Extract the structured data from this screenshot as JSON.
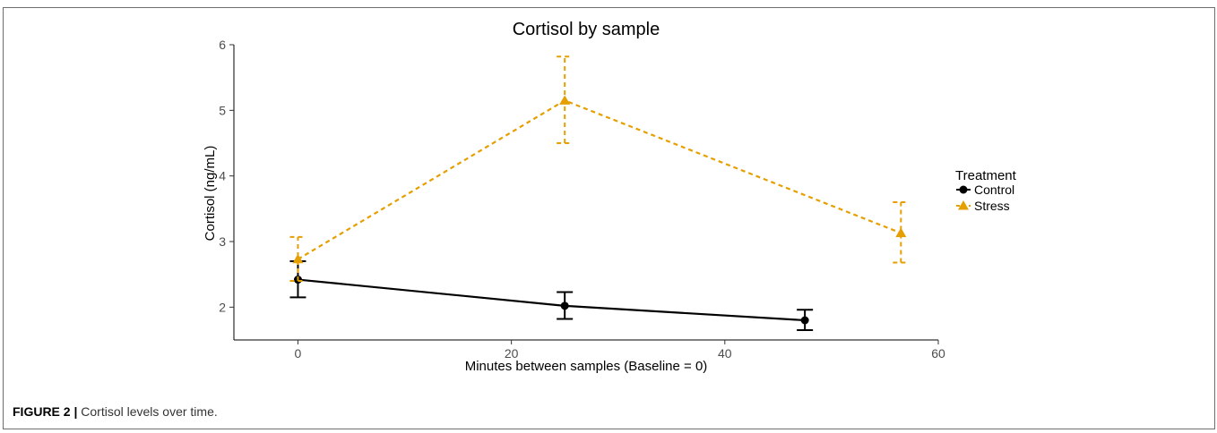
{
  "caption": {
    "label": "FIGURE 2 |",
    "text": " Cortisol levels over time."
  },
  "chart_data": {
    "type": "line",
    "title": "Cortisol by sample",
    "xlabel": "Minutes between samples (Baseline = 0)",
    "ylabel": "Cortisol (ng/mL)",
    "xlim": [
      -6,
      60
    ],
    "ylim": [
      1.5,
      6
    ],
    "xticks": [
      0,
      20,
      40,
      60
    ],
    "yticks": [
      2,
      3,
      4,
      5,
      6
    ],
    "grid": false,
    "legend": {
      "title": "Treatment",
      "placement": "right"
    },
    "series": [
      {
        "name": "Control",
        "color": "#000000",
        "marker": "circle",
        "line": "solid",
        "points": [
          {
            "x": 0,
            "y": 2.42,
            "lo": 2.15,
            "hi": 2.7
          },
          {
            "x": 25,
            "y": 2.02,
            "lo": 1.82,
            "hi": 2.23
          },
          {
            "x": 47.5,
            "y": 1.8,
            "lo": 1.65,
            "hi": 1.96
          }
        ]
      },
      {
        "name": "Stress",
        "color": "#E69F00",
        "marker": "triangle",
        "line": "dashed",
        "points": [
          {
            "x": 0,
            "y": 2.73,
            "lo": 2.4,
            "hi": 3.07
          },
          {
            "x": 25,
            "y": 5.15,
            "lo": 4.5,
            "hi": 5.82
          },
          {
            "x": 56.5,
            "y": 3.13,
            "lo": 2.68,
            "hi": 3.6
          }
        ]
      }
    ]
  }
}
